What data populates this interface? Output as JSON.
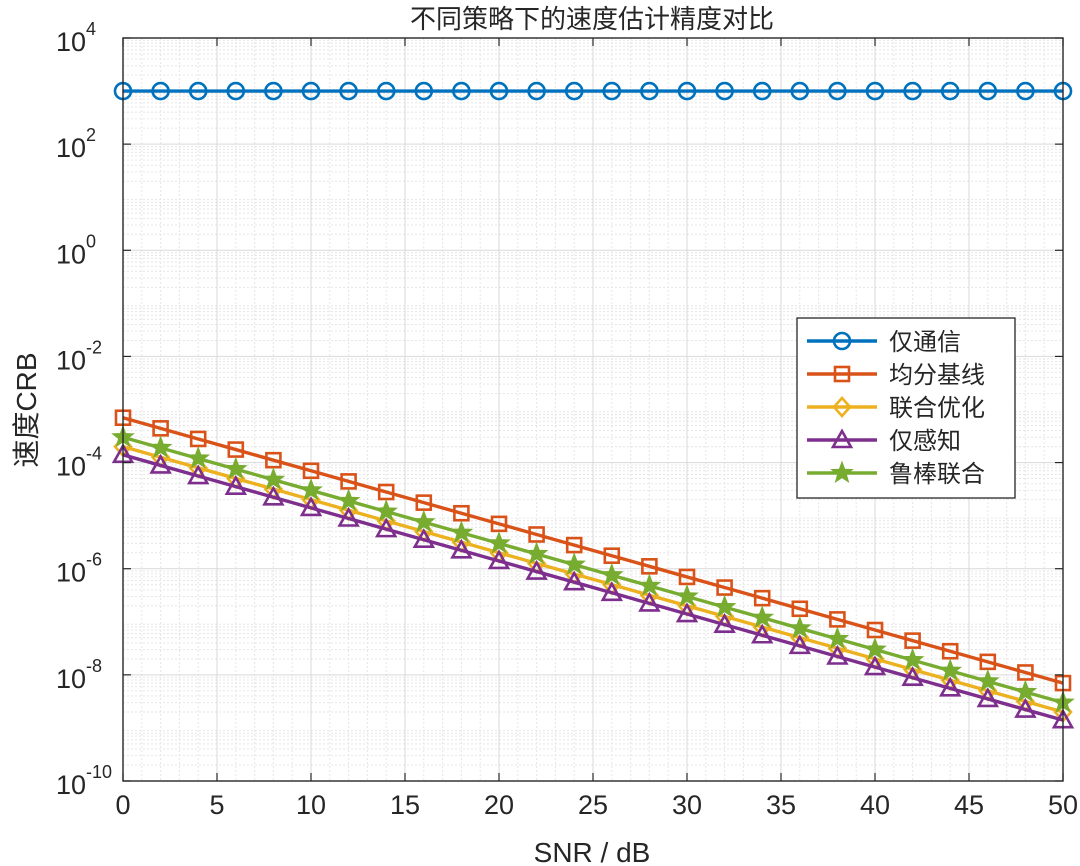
{
  "chart_data": {
    "type": "line",
    "title": "不同策略下的速度估计精度对比",
    "xlabel": "SNR / dB",
    "ylabel": "速度CRB",
    "xlim": [
      0,
      50
    ],
    "ylim": [
      1e-10,
      10000
    ],
    "yscale": "log",
    "grid": true,
    "minor_grid": true,
    "legend_position": "right-middle",
    "x_ticks": [
      "0",
      "5",
      "10",
      "15",
      "20",
      "25",
      "30",
      "35",
      "40",
      "45",
      "50"
    ],
    "y_tick_mantissa": "10",
    "y_tick_exponents": [
      "-10",
      "-8",
      "-6",
      "-4",
      "-2",
      "0",
      "2",
      "4"
    ],
    "x": [
      0,
      2,
      4,
      6,
      8,
      10,
      12,
      14,
      16,
      18,
      20,
      22,
      24,
      26,
      28,
      30,
      32,
      34,
      36,
      38,
      40,
      42,
      44,
      46,
      48,
      50
    ],
    "series": [
      {
        "name": "仅通信",
        "color": "#0072BD",
        "marker": "circle",
        "y_at_x0": 1000,
        "y_at_x50": 1000
      },
      {
        "name": "均分基线",
        "color": "#D95319",
        "marker": "square",
        "y_at_x0": 0.0007,
        "y_at_x50": 7e-09
      },
      {
        "name": "联合优化",
        "color": "#EDB120",
        "marker": "diamond",
        "y_at_x0": 0.0002,
        "y_at_x50": 2e-09
      },
      {
        "name": "仅感知",
        "color": "#7E2F8E",
        "marker": "triangle",
        "y_at_x0": 0.00014,
        "y_at_x50": 1.4e-09
      },
      {
        "name": "鲁棒联合",
        "color": "#77AC30",
        "marker": "star",
        "y_at_x0": 0.0003,
        "y_at_x50": 3e-09
      }
    ]
  }
}
